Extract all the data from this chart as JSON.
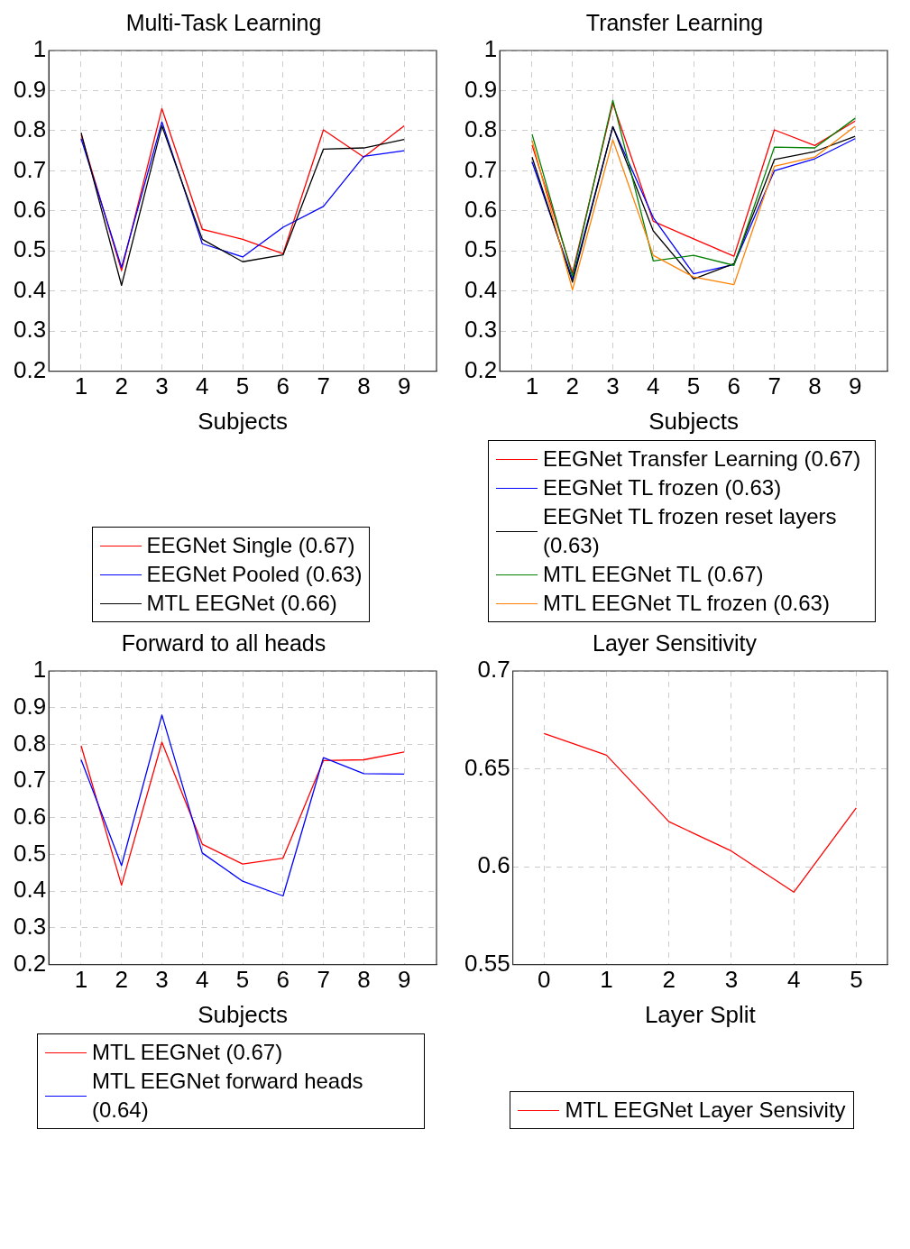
{
  "chart_data": [
    {
      "type": "line",
      "title": "Multi-Task Learning",
      "xlabel": "Subjects",
      "x": [
        1,
        2,
        3,
        4,
        5,
        6,
        7,
        8,
        9
      ],
      "xlim": [
        0.2,
        9.8
      ],
      "xticks": [
        1,
        2,
        3,
        4,
        5,
        6,
        7,
        8,
        9
      ],
      "ylim": [
        0.2,
        1
      ],
      "yticks": [
        0.2,
        0.3,
        0.4,
        0.5,
        0.6,
        0.7,
        0.8,
        0.9,
        1
      ],
      "grid": true,
      "marker": "none",
      "legend": "bottom",
      "series": [
        {
          "name": "EEGNet Single (0.67)",
          "color": "#ff0000",
          "values": [
            0.79,
            0.451,
            0.855,
            0.554,
            0.529,
            0.493,
            0.802,
            0.734,
            0.812
          ]
        },
        {
          "name": "EEGNet Pooled (0.63)",
          "color": "#0000ff",
          "values": [
            0.78,
            0.459,
            0.822,
            0.518,
            0.485,
            0.559,
            0.611,
            0.736,
            0.75
          ]
        },
        {
          "name": "MTL EEGNet (0.66)",
          "color": "#000000",
          "values": [
            0.795,
            0.414,
            0.812,
            0.529,
            0.473,
            0.49,
            0.754,
            0.757,
            0.778
          ]
        }
      ]
    },
    {
      "type": "line",
      "title": "Transfer Learning",
      "xlabel": "Subjects",
      "x": [
        1,
        2,
        3,
        4,
        5,
        6,
        7,
        8,
        9
      ],
      "xlim": [
        0.2,
        9.8
      ],
      "xticks": [
        1,
        2,
        3,
        4,
        5,
        6,
        7,
        8,
        9
      ],
      "ylim": [
        0.2,
        1
      ],
      "yticks": [
        0.2,
        0.3,
        0.4,
        0.5,
        0.6,
        0.7,
        0.8,
        0.9,
        1
      ],
      "grid": true,
      "marker": "none",
      "legend": "bottom",
      "series": [
        {
          "name": "EEGNet Transfer Learning (0.67)",
          "color": "#ff0000",
          "values": [
            0.764,
            0.445,
            0.869,
            0.574,
            0.53,
            0.487,
            0.802,
            0.763,
            0.824
          ]
        },
        {
          "name": "EEGNet TL frozen (0.63)",
          "color": "#0000ff",
          "values": [
            0.722,
            0.43,
            0.81,
            0.583,
            0.443,
            0.466,
            0.7,
            0.73,
            0.78
          ]
        },
        {
          "name": "EEGNet TL frozen reset layers (0.63)",
          "color": "#000000",
          "values": [
            0.734,
            0.422,
            0.81,
            0.55,
            0.43,
            0.468,
            0.728,
            0.748,
            0.786
          ]
        },
        {
          "name": "MTL EEGNet TL (0.67)",
          "color": "#008000",
          "values": [
            0.791,
            0.437,
            0.876,
            0.475,
            0.489,
            0.464,
            0.759,
            0.757,
            0.831
          ]
        },
        {
          "name": "MTL EEGNet TL frozen (0.63)",
          "color": "#ff8000",
          "values": [
            0.776,
            0.403,
            0.777,
            0.489,
            0.435,
            0.416,
            0.711,
            0.734,
            0.811
          ]
        }
      ]
    },
    {
      "type": "line",
      "title": "Forward to all heads",
      "xlabel": "Subjects",
      "x": [
        1,
        2,
        3,
        4,
        5,
        6,
        7,
        8,
        9
      ],
      "xlim": [
        0.2,
        9.8
      ],
      "xticks": [
        1,
        2,
        3,
        4,
        5,
        6,
        7,
        8,
        9
      ],
      "ylim": [
        0.2,
        1
      ],
      "yticks": [
        0.2,
        0.3,
        0.4,
        0.5,
        0.6,
        0.7,
        0.8,
        0.9,
        1
      ],
      "grid": true,
      "marker": "none",
      "legend": "bottom",
      "series": [
        {
          "name": "MTL EEGNet (0.67)",
          "color": "#ff0000",
          "values": [
            0.796,
            0.416,
            0.806,
            0.528,
            0.474,
            0.49,
            0.756,
            0.758,
            0.779
          ]
        },
        {
          "name": "MTL EEGNet forward heads (0.64)",
          "color": "#0000ff",
          "values": [
            0.758,
            0.47,
            0.88,
            0.504,
            0.427,
            0.387,
            0.764,
            0.72,
            0.719
          ]
        }
      ]
    },
    {
      "type": "line",
      "title": "Layer Sensitivity",
      "xlabel": "Layer Split",
      "x": [
        0,
        1,
        2,
        3,
        4,
        5
      ],
      "xlim": [
        -0.5,
        5.5
      ],
      "xticks": [
        0,
        1,
        2,
        3,
        4,
        5
      ],
      "ylim": [
        0.55,
        0.7
      ],
      "yticks": [
        0.55,
        0.6,
        0.65,
        0.7
      ],
      "grid": true,
      "marker": "none",
      "legend": "bottom",
      "series": [
        {
          "name": "MTL EEGNet Layer Sensivity",
          "color": "#ff0000",
          "values": [
            0.668,
            0.657,
            0.623,
            0.608,
            0.587,
            0.63
          ]
        }
      ]
    }
  ]
}
